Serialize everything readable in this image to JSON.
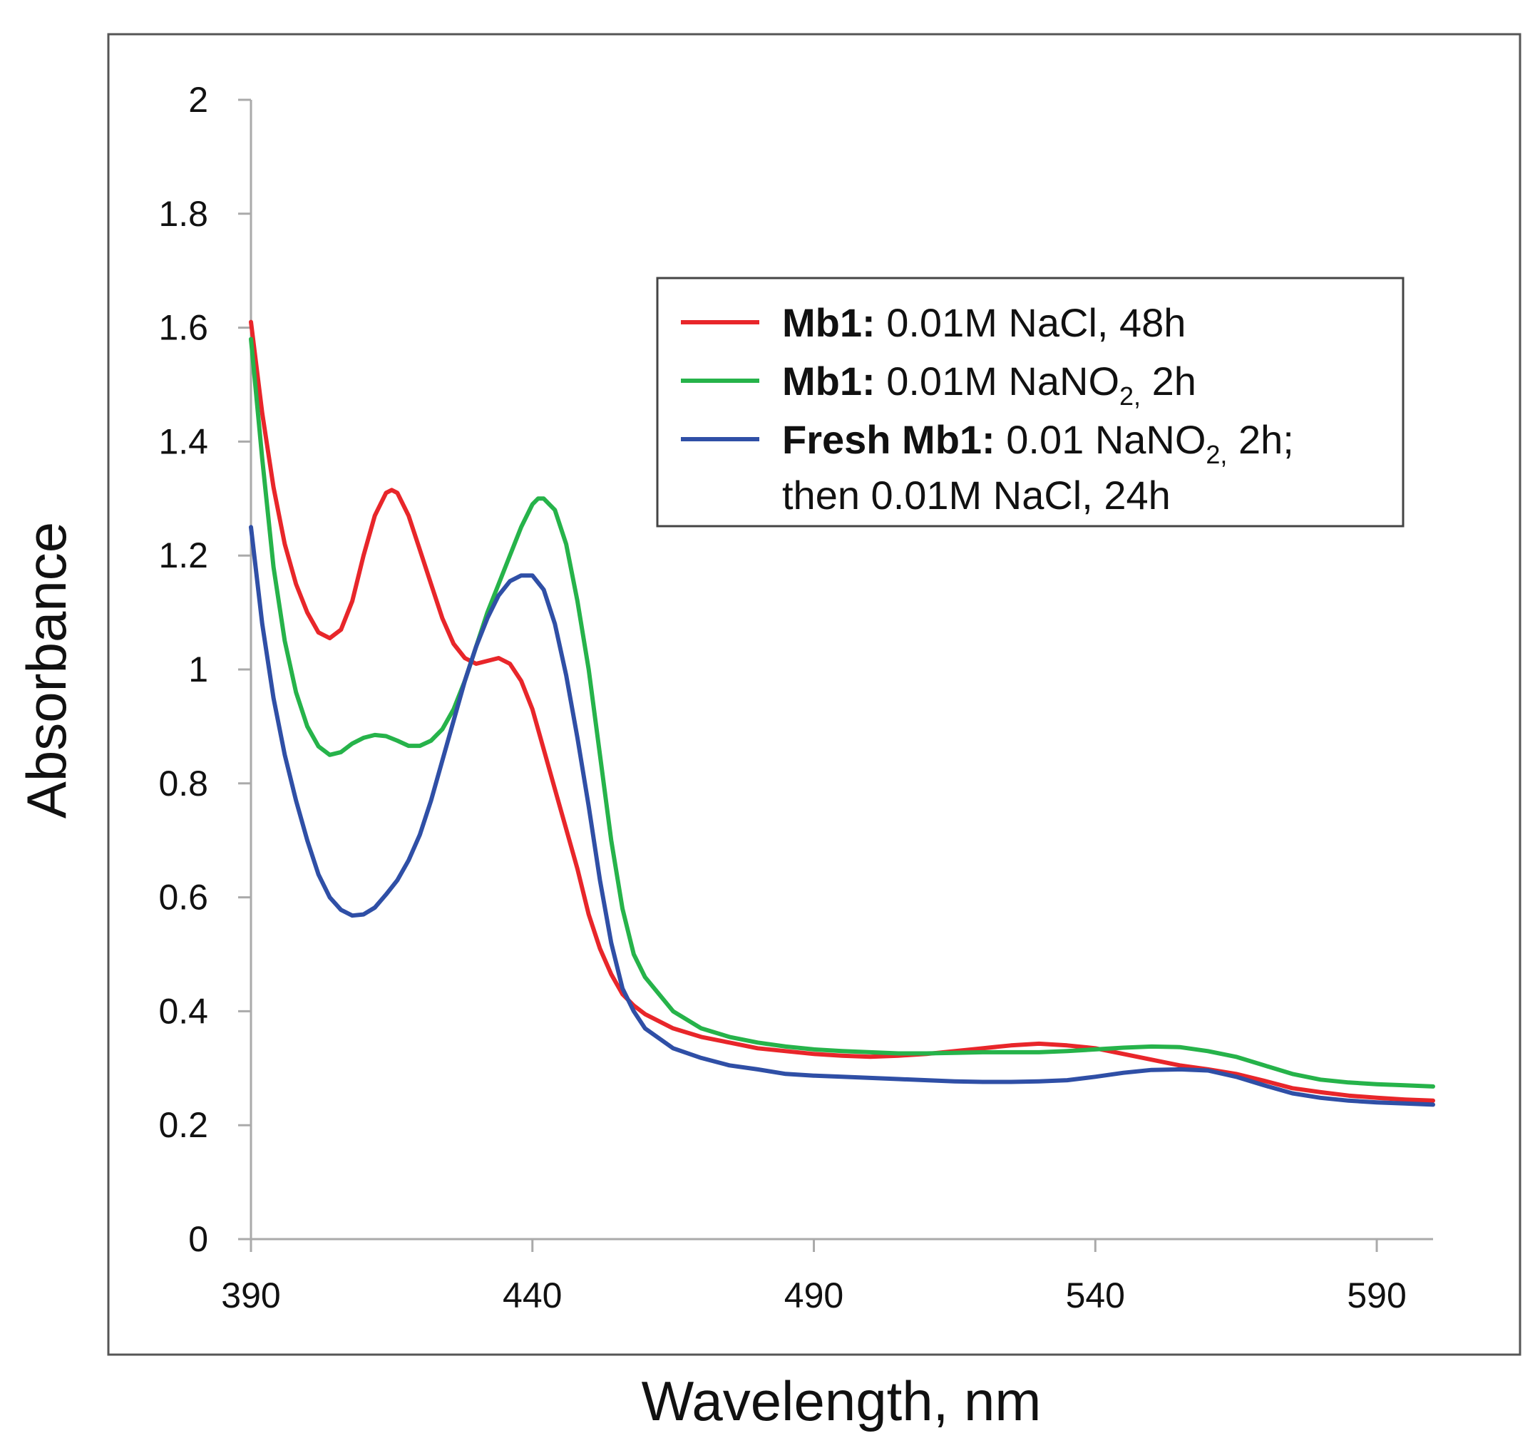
{
  "chart_data": {
    "type": "line",
    "xlabel": "Wavelength,  nm",
    "ylabel": "Absorbance",
    "xlim": [
      390,
      600
    ],
    "ylim": [
      0,
      2
    ],
    "x_ticks": [
      "390",
      "440",
      "490",
      "540",
      "590"
    ],
    "y_ticks": [
      "0",
      "0.2",
      "0.4",
      "0.6",
      "0.8",
      "1",
      "1.2",
      "1.4",
      "1.6",
      "1.8",
      "2"
    ],
    "grid": false,
    "legend_position": "top-right",
    "legend": [
      {
        "bold": "Mb1:",
        "text": " 0.01M NaCl, 48h",
        "color": "#e8262a"
      },
      {
        "bold": "Mb1:",
        "text": " 0.01M NaNO",
        "sub": "2,",
        "text_after": " 2h",
        "color": "#26b34a"
      },
      {
        "bold": "Fresh Mb1:",
        "text": " 0.01 NaNO",
        "sub": "2,",
        "text_after": " 2h;",
        "line2": "then 0.01M NaCl, 24h",
        "color": "#2f4fa6"
      }
    ],
    "series": [
      {
        "color": "#e8262a",
        "points": [
          [
            390,
            1.61
          ],
          [
            392,
            1.45
          ],
          [
            394,
            1.32
          ],
          [
            396,
            1.22
          ],
          [
            398,
            1.15
          ],
          [
            400,
            1.1
          ],
          [
            402,
            1.065
          ],
          [
            404,
            1.055
          ],
          [
            406,
            1.07
          ],
          [
            408,
            1.12
          ],
          [
            410,
            1.2
          ],
          [
            412,
            1.27
          ],
          [
            414,
            1.31
          ],
          [
            415,
            1.315
          ],
          [
            416,
            1.31
          ],
          [
            418,
            1.27
          ],
          [
            420,
            1.21
          ],
          [
            422,
            1.15
          ],
          [
            424,
            1.09
          ],
          [
            426,
            1.045
          ],
          [
            428,
            1.02
          ],
          [
            430,
            1.01
          ],
          [
            432,
            1.015
          ],
          [
            434,
            1.02
          ],
          [
            436,
            1.01
          ],
          [
            438,
            0.98
          ],
          [
            440,
            0.93
          ],
          [
            442,
            0.86
          ],
          [
            444,
            0.79
          ],
          [
            446,
            0.72
          ],
          [
            448,
            0.65
          ],
          [
            450,
            0.57
          ],
          [
            452,
            0.51
          ],
          [
            454,
            0.465
          ],
          [
            456,
            0.43
          ],
          [
            458,
            0.41
          ],
          [
            460,
            0.395
          ],
          [
            465,
            0.37
          ],
          [
            470,
            0.355
          ],
          [
            475,
            0.345
          ],
          [
            480,
            0.335
          ],
          [
            485,
            0.33
          ],
          [
            490,
            0.325
          ],
          [
            495,
            0.322
          ],
          [
            500,
            0.32
          ],
          [
            505,
            0.322
          ],
          [
            510,
            0.325
          ],
          [
            515,
            0.33
          ],
          [
            520,
            0.335
          ],
          [
            525,
            0.34
          ],
          [
            530,
            0.343
          ],
          [
            535,
            0.34
          ],
          [
            540,
            0.335
          ],
          [
            545,
            0.325
          ],
          [
            550,
            0.315
          ],
          [
            555,
            0.305
          ],
          [
            560,
            0.298
          ],
          [
            565,
            0.29
          ],
          [
            570,
            0.278
          ],
          [
            575,
            0.265
          ],
          [
            580,
            0.258
          ],
          [
            585,
            0.252
          ],
          [
            590,
            0.248
          ],
          [
            595,
            0.245
          ],
          [
            600,
            0.243
          ]
        ]
      },
      {
        "color": "#26b34a",
        "points": [
          [
            390,
            1.58
          ],
          [
            392,
            1.37
          ],
          [
            394,
            1.18
          ],
          [
            396,
            1.05
          ],
          [
            398,
            0.96
          ],
          [
            400,
            0.9
          ],
          [
            402,
            0.865
          ],
          [
            404,
            0.85
          ],
          [
            406,
            0.855
          ],
          [
            408,
            0.87
          ],
          [
            410,
            0.88
          ],
          [
            412,
            0.885
          ],
          [
            414,
            0.883
          ],
          [
            416,
            0.875
          ],
          [
            418,
            0.866
          ],
          [
            420,
            0.866
          ],
          [
            422,
            0.875
          ],
          [
            424,
            0.895
          ],
          [
            426,
            0.93
          ],
          [
            428,
            0.98
          ],
          [
            430,
            1.04
          ],
          [
            432,
            1.1
          ],
          [
            434,
            1.15
          ],
          [
            436,
            1.2
          ],
          [
            438,
            1.25
          ],
          [
            440,
            1.29
          ],
          [
            441,
            1.3
          ],
          [
            442,
            1.3
          ],
          [
            444,
            1.28
          ],
          [
            446,
            1.22
          ],
          [
            448,
            1.12
          ],
          [
            450,
            1.0
          ],
          [
            452,
            0.85
          ],
          [
            454,
            0.7
          ],
          [
            456,
            0.58
          ],
          [
            458,
            0.5
          ],
          [
            460,
            0.46
          ],
          [
            465,
            0.4
          ],
          [
            470,
            0.37
          ],
          [
            475,
            0.355
          ],
          [
            480,
            0.345
          ],
          [
            485,
            0.338
          ],
          [
            490,
            0.333
          ],
          [
            495,
            0.33
          ],
          [
            500,
            0.328
          ],
          [
            505,
            0.326
          ],
          [
            510,
            0.326
          ],
          [
            515,
            0.327
          ],
          [
            520,
            0.328
          ],
          [
            525,
            0.328
          ],
          [
            530,
            0.328
          ],
          [
            535,
            0.33
          ],
          [
            540,
            0.333
          ],
          [
            545,
            0.336
          ],
          [
            550,
            0.338
          ],
          [
            555,
            0.337
          ],
          [
            560,
            0.33
          ],
          [
            565,
            0.32
          ],
          [
            570,
            0.305
          ],
          [
            575,
            0.29
          ],
          [
            580,
            0.28
          ],
          [
            585,
            0.275
          ],
          [
            590,
            0.272
          ],
          [
            595,
            0.27
          ],
          [
            600,
            0.268
          ]
        ]
      },
      {
        "color": "#2f4fa6",
        "points": [
          [
            390,
            1.25
          ],
          [
            392,
            1.08
          ],
          [
            394,
            0.95
          ],
          [
            396,
            0.85
          ],
          [
            398,
            0.77
          ],
          [
            400,
            0.7
          ],
          [
            402,
            0.64
          ],
          [
            404,
            0.6
          ],
          [
            406,
            0.578
          ],
          [
            408,
            0.568
          ],
          [
            410,
            0.57
          ],
          [
            412,
            0.582
          ],
          [
            414,
            0.605
          ],
          [
            416,
            0.63
          ],
          [
            418,
            0.665
          ],
          [
            420,
            0.71
          ],
          [
            422,
            0.77
          ],
          [
            424,
            0.84
          ],
          [
            426,
            0.91
          ],
          [
            428,
            0.98
          ],
          [
            430,
            1.04
          ],
          [
            432,
            1.09
          ],
          [
            434,
            1.13
          ],
          [
            436,
            1.155
          ],
          [
            438,
            1.165
          ],
          [
            440,
            1.165
          ],
          [
            442,
            1.14
          ],
          [
            444,
            1.08
          ],
          [
            446,
            0.99
          ],
          [
            448,
            0.88
          ],
          [
            450,
            0.76
          ],
          [
            452,
            0.63
          ],
          [
            454,
            0.52
          ],
          [
            456,
            0.44
          ],
          [
            458,
            0.4
          ],
          [
            460,
            0.37
          ],
          [
            465,
            0.335
          ],
          [
            470,
            0.318
          ],
          [
            475,
            0.305
          ],
          [
            480,
            0.298
          ],
          [
            485,
            0.29
          ],
          [
            490,
            0.287
          ],
          [
            495,
            0.285
          ],
          [
            500,
            0.283
          ],
          [
            505,
            0.281
          ],
          [
            510,
            0.279
          ],
          [
            515,
            0.277
          ],
          [
            520,
            0.276
          ],
          [
            525,
            0.276
          ],
          [
            530,
            0.277
          ],
          [
            535,
            0.279
          ],
          [
            540,
            0.285
          ],
          [
            545,
            0.292
          ],
          [
            550,
            0.297
          ],
          [
            555,
            0.298
          ],
          [
            560,
            0.296
          ],
          [
            565,
            0.285
          ],
          [
            570,
            0.27
          ],
          [
            575,
            0.256
          ],
          [
            580,
            0.248
          ],
          [
            585,
            0.243
          ],
          [
            590,
            0.24
          ],
          [
            595,
            0.238
          ],
          [
            600,
            0.236
          ]
        ]
      }
    ]
  }
}
